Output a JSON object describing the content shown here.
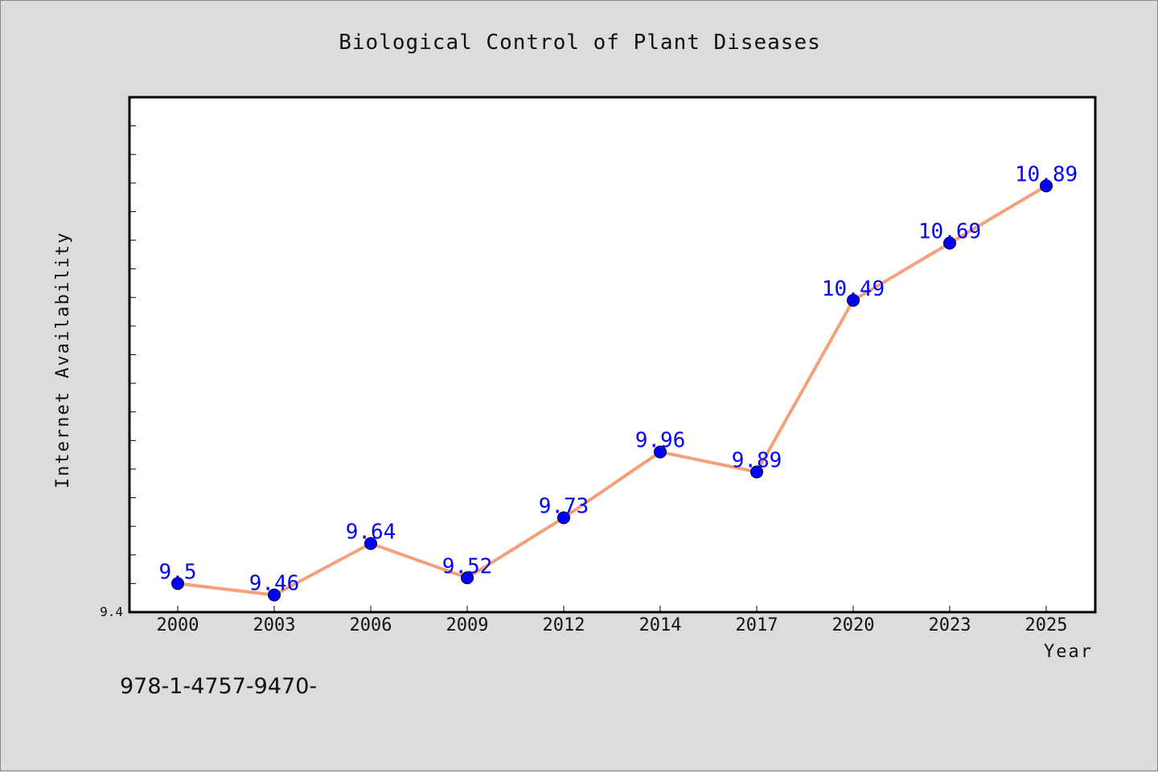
{
  "chart_data": {
    "type": "line",
    "title": "Biological Control of Plant Diseases",
    "xlabel": "Year",
    "ylabel": "Internet Availability",
    "categories": [
      "2000",
      "2003",
      "2006",
      "2009",
      "2012",
      "2014",
      "2017",
      "2020",
      "2023",
      "2025"
    ],
    "series": [
      {
        "values": [
          9.5,
          9.46,
          9.64,
          9.52,
          9.73,
          9.96,
          9.89,
          10.49,
          10.69,
          10.89
        ],
        "color": "#f4a07a",
        "marker_color": "#0000ff"
      }
    ],
    "data_labels": [
      "9.5",
      "9.46",
      "9.64",
      "9.52",
      "9.73",
      "9.96",
      "9.89",
      "10.49",
      "10.69",
      "10.89"
    ],
    "ylim": [
      9.4,
      11.2
    ],
    "y_tick_labels": [
      "9.4"
    ],
    "grid": false,
    "legend": "none"
  },
  "footer_text": "978-1-4757-9470-"
}
